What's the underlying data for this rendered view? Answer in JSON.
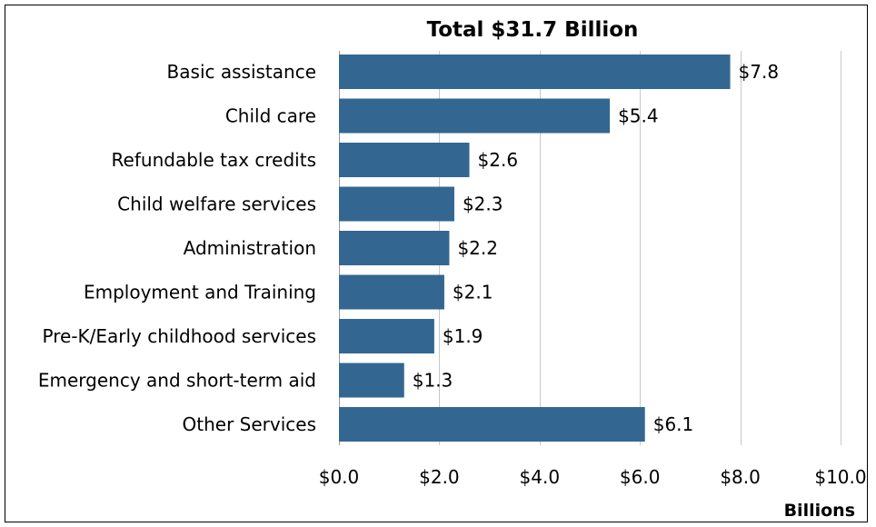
{
  "chart_data": {
    "type": "bar",
    "orientation": "horizontal",
    "title": "Total $31.7 Billion",
    "xlabel": "Billions",
    "ylabel": "",
    "categories": [
      "Basic assistance",
      "Child care",
      "Refundable tax credits",
      "Child welfare services",
      "Administration",
      "Employment and Training",
      "Pre-K/Early childhood services",
      "Emergency and short-term aid",
      "Other Services"
    ],
    "values": [
      7.8,
      5.4,
      2.6,
      2.3,
      2.2,
      2.1,
      1.9,
      1.3,
      6.1
    ],
    "data_labels": [
      "$7.8",
      "$5.4",
      "$2.6",
      "$2.3",
      "$2.2",
      "$2.1",
      "$1.9",
      "$1.3",
      "$6.1"
    ],
    "xlim": [
      0,
      10
    ],
    "x_ticks": [
      0,
      2,
      4,
      6,
      8,
      10
    ],
    "x_tick_labels": [
      "$0.0",
      "$2.0",
      "$4.0",
      "$6.0",
      "$8.0",
      "$10.0"
    ],
    "grid": true,
    "legend": "none",
    "bar_color": "#336791",
    "grid_color": "#c8c8c8"
  }
}
